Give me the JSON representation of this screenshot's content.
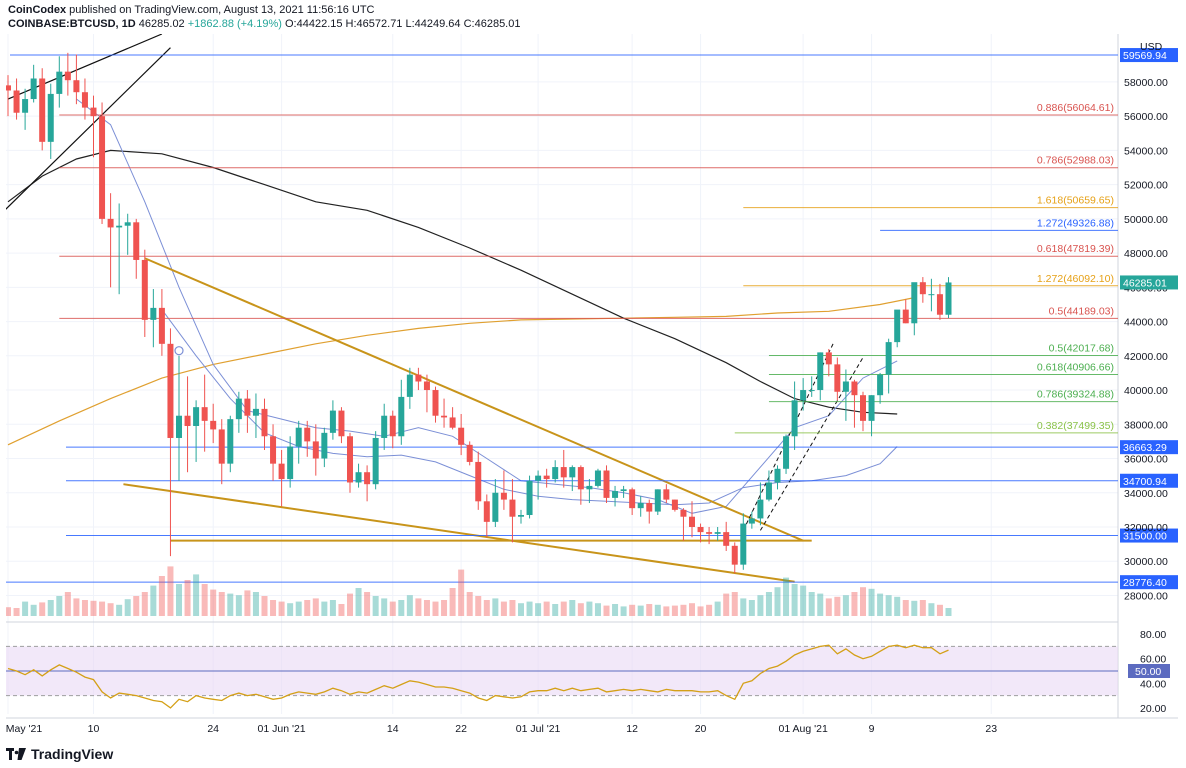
{
  "header": {
    "publisher": "CoinCodex",
    "published_text": "published on TradingView.com, August 13, 2021 11:56:16 UTC",
    "symbol": "COINBASE:BTCUSD, 1D",
    "last": "46285.02",
    "change": "+1862.88 (+4.19%)",
    "ohlc": "O:44422.15 H:46572.71 L:44249.64 C:46285.01"
  },
  "footer": {
    "brand": "TradingView"
  },
  "colors": {
    "up": "#26a69a",
    "down": "#ef5350",
    "rsi_line": "#d4a017",
    "rsi_band": "#e9d8f5",
    "ma_black": "#222222",
    "ma_blue": "#7b8fd6",
    "ma_orange": "#e0a030",
    "trend": "#c8941a"
  },
  "chart_data": {
    "type": "candlestick",
    "title": "",
    "currency_label": "USD",
    "ylim": [
      26800,
      60800
    ],
    "price_ticks": [
      28000,
      30000,
      32000,
      34000,
      36000,
      38000,
      40000,
      42000,
      44000,
      46000,
      48000,
      50000,
      52000,
      54000,
      56000,
      58000
    ],
    "price_tick_labels": [
      "28000.00",
      "30000.00",
      "32000.00",
      "34000.00",
      "36000.00",
      "38000.00",
      "40000.00",
      "42000.00",
      "44000.00",
      "46000.00",
      "48000.00",
      "50000.00",
      "52000.00",
      "54000.00",
      "56000.00",
      "58000.00"
    ],
    "x_tick_labels": [
      {
        "label": "May '21",
        "day": 0
      },
      {
        "label": "10",
        "day": 10
      },
      {
        "label": "24",
        "day": 24
      },
      {
        "label": "01 Jun '21",
        "day": 32
      },
      {
        "label": "14",
        "day": 45
      },
      {
        "label": "22",
        "day": 53
      },
      {
        "label": "01 Jul '21",
        "day": 62
      },
      {
        "label": "12",
        "day": 73
      },
      {
        "label": "20",
        "day": 81
      },
      {
        "label": "01 Aug '21",
        "day": 93
      },
      {
        "label": "9",
        "day": 101
      },
      {
        "label": "23",
        "day": 115
      }
    ],
    "ohlc": [
      [
        57800,
        58400,
        56000,
        57500
      ],
      [
        57500,
        58200,
        55800,
        56200
      ],
      [
        56200,
        57600,
        55200,
        57000
      ],
      [
        57000,
        59000,
        56800,
        58200
      ],
      [
        58200,
        58800,
        54000,
        54500
      ],
      [
        54500,
        57900,
        53500,
        57300
      ],
      [
        57300,
        59500,
        56500,
        58600
      ],
      [
        58600,
        59700,
        57200,
        58100
      ],
      [
        58100,
        59600,
        56700,
        57400
      ],
      [
        57400,
        58200,
        55800,
        56500
      ],
      [
        56500,
        57200,
        53600,
        56000
      ],
      [
        56000,
        56800,
        49700,
        50000
      ],
      [
        50000,
        51500,
        46000,
        49500
      ],
      [
        49500,
        50900,
        45600,
        49600
      ],
      [
        49600,
        50300,
        47900,
        49800
      ],
      [
        49800,
        50000,
        46500,
        47600
      ],
      [
        47600,
        48200,
        43100,
        44100
      ],
      [
        44100,
        45900,
        42500,
        44800
      ],
      [
        44800,
        45900,
        42000,
        42700
      ],
      [
        42700,
        43600,
        30300,
        37200
      ],
      [
        37200,
        42000,
        34700,
        38500
      ],
      [
        38500,
        40800,
        35200,
        37900
      ],
      [
        37900,
        39400,
        35800,
        39000
      ],
      [
        39000,
        40900,
        36400,
        38200
      ],
      [
        38200,
        39200,
        36900,
        37700
      ],
      [
        37700,
        38300,
        34500,
        35700
      ],
      [
        35700,
        38500,
        35200,
        38300
      ],
      [
        38300,
        39900,
        37500,
        39500
      ],
      [
        39500,
        40000,
        37500,
        38500
      ],
      [
        38500,
        39800,
        37200,
        38900
      ],
      [
        38900,
        39500,
        36500,
        37300
      ],
      [
        37300,
        38000,
        34700,
        35700
      ],
      [
        35700,
        36500,
        33200,
        34800
      ],
      [
        34800,
        37300,
        34300,
        36700
      ],
      [
        36700,
        38200,
        35700,
        37800
      ],
      [
        37800,
        38200,
        36100,
        37000
      ],
      [
        37000,
        38000,
        35000,
        36000
      ],
      [
        36000,
        37800,
        35500,
        37500
      ],
      [
        37500,
        39400,
        37100,
        38800
      ],
      [
        38800,
        39000,
        36900,
        37300
      ],
      [
        37300,
        37500,
        34000,
        34600
      ],
      [
        34600,
        35700,
        34300,
        35200
      ],
      [
        35200,
        35600,
        33500,
        34500
      ],
      [
        34500,
        37600,
        34200,
        37200
      ],
      [
        37200,
        39200,
        36500,
        38500
      ],
      [
        38500,
        38800,
        36600,
        37300
      ],
      [
        37300,
        40600,
        36800,
        39600
      ],
      [
        39600,
        41300,
        38900,
        40900
      ],
      [
        40900,
        41300,
        40000,
        40500
      ],
      [
        40500,
        40900,
        38700,
        40000
      ],
      [
        40000,
        40200,
        38100,
        38500
      ],
      [
        38500,
        39500,
        37800,
        38400
      ],
      [
        38400,
        39000,
        37700,
        37800
      ],
      [
        37800,
        38600,
        36200,
        36800
      ],
      [
        36800,
        37000,
        35600,
        35800
      ],
      [
        35800,
        36400,
        33000,
        33500
      ],
      [
        33500,
        33900,
        31400,
        32300
      ],
      [
        32300,
        34800,
        32000,
        34000
      ],
      [
        34000,
        35300,
        33000,
        33600
      ],
      [
        33600,
        34800,
        31100,
        32600
      ],
      [
        32600,
        33000,
        32200,
        32700
      ],
      [
        32700,
        35000,
        32500,
        34700
      ],
      [
        34700,
        35300,
        33600,
        35000
      ],
      [
        35000,
        35400,
        34300,
        34800
      ],
      [
        34800,
        35900,
        34600,
        35500
      ],
      [
        35500,
        36500,
        34300,
        34900
      ],
      [
        34900,
        35600,
        34100,
        35500
      ],
      [
        35500,
        35600,
        33300,
        34200
      ],
      [
        34200,
        34800,
        33400,
        34400
      ],
      [
        34400,
        35400,
        34300,
        35300
      ],
      [
        35300,
        35600,
        33400,
        33700
      ],
      [
        33700,
        34400,
        33200,
        34100
      ],
      [
        34100,
        34400,
        33700,
        34200
      ],
      [
        34200,
        34300,
        32700,
        33100
      ],
      [
        33100,
        33800,
        32600,
        33400
      ],
      [
        33400,
        33600,
        32200,
        32900
      ],
      [
        32900,
        34200,
        32700,
        34200
      ],
      [
        34200,
        34500,
        33400,
        33600
      ],
      [
        33600,
        33600,
        32900,
        33000
      ],
      [
        33000,
        33100,
        31200,
        32600
      ],
      [
        32600,
        33500,
        31400,
        32000
      ],
      [
        32000,
        32200,
        31100,
        31700
      ],
      [
        31700,
        32000,
        31000,
        31600
      ],
      [
        31600,
        32000,
        31200,
        31700
      ],
      [
        31700,
        32300,
        30600,
        30900
      ],
      [
        30900,
        31100,
        29300,
        29800
      ],
      [
        29800,
        32800,
        29500,
        32200
      ],
      [
        32200,
        32900,
        31900,
        32500
      ],
      [
        32500,
        34600,
        32100,
        33600
      ],
      [
        33600,
        35300,
        33500,
        34600
      ],
      [
        34600,
        35600,
        34200,
        35400
      ],
      [
        35400,
        37400,
        35100,
        37300
      ],
      [
        37300,
        40500,
        36500,
        39400
      ],
      [
        39400,
        40700,
        38800,
        40000
      ],
      [
        40000,
        40800,
        39600,
        40000
      ],
      [
        40000,
        42200,
        39400,
        42200
      ],
      [
        42200,
        42400,
        40800,
        41500
      ],
      [
        41500,
        41900,
        39400,
        39900
      ],
      [
        39900,
        41200,
        38200,
        40500
      ],
      [
        40500,
        40600,
        37800,
        39700
      ],
      [
        39700,
        39900,
        37600,
        38200
      ],
      [
        38200,
        39700,
        37300,
        39700
      ],
      [
        39700,
        41000,
        39200,
        40900
      ],
      [
        40900,
        43000,
        39800,
        42800
      ],
      [
        42800,
        44600,
        42500,
        44700
      ],
      [
        44700,
        45300,
        43900,
        43900
      ],
      [
        43900,
        46100,
        43200,
        46300
      ],
      [
        46300,
        46600,
        45100,
        45600
      ],
      [
        45600,
        46500,
        44600,
        45600
      ],
      [
        45600,
        46200,
        44100,
        44400
      ],
      [
        44400,
        46600,
        44200,
        46285
      ]
    ],
    "volume_heights": [
      11,
      10,
      18,
      14,
      17,
      20,
      25,
      30,
      22,
      20,
      19,
      18,
      16,
      14,
      21,
      25,
      30,
      38,
      50,
      62,
      40,
      45,
      52,
      40,
      33,
      30,
      28,
      26,
      32,
      30,
      25,
      20,
      18,
      16,
      18,
      20,
      22,
      18,
      20,
      15,
      28,
      35,
      30,
      25,
      22,
      18,
      20,
      26,
      22,
      20,
      18,
      20,
      35,
      58,
      30,
      25,
      20,
      22,
      18,
      20,
      16,
      18,
      16,
      18,
      15,
      18,
      20,
      16,
      18,
      16,
      13,
      15,
      12,
      14,
      13,
      15,
      14,
      12,
      13,
      14,
      16,
      12,
      14,
      18,
      28,
      30,
      22,
      20,
      26,
      30,
      36,
      48,
      40,
      38,
      30,
      28,
      22,
      24,
      26,
      30,
      36,
      34,
      28,
      26,
      24,
      20,
      19,
      20,
      16,
      14,
      10
    ],
    "rsi_ticks": [
      20,
      40,
      50,
      60,
      80
    ],
    "rsi_tick_labels": [
      "20.00",
      "40.00",
      "",
      "60.00",
      "80.00"
    ],
    "rsi_bands": [
      30,
      70
    ],
    "rsi_mid_label": "50.00",
    "rsi": [
      52,
      50,
      47,
      51,
      46,
      51,
      55,
      52,
      49,
      45,
      43,
      33,
      28,
      32,
      31,
      30,
      28,
      26,
      25,
      20,
      27,
      25,
      30,
      28,
      27,
      26,
      30,
      32,
      30,
      31,
      29,
      27,
      28,
      31,
      33,
      32,
      31,
      33,
      36,
      34,
      31,
      33,
      32,
      35,
      38,
      36,
      39,
      42,
      41,
      39,
      37,
      37,
      36,
      34,
      32,
      28,
      26,
      30,
      29,
      28,
      29,
      33,
      34,
      34,
      36,
      34,
      36,
      34,
      35,
      36,
      33,
      34,
      35,
      34,
      35,
      34,
      33,
      35,
      34,
      34,
      34,
      33,
      33,
      34,
      30,
      27,
      40,
      42,
      48,
      52,
      54,
      58,
      63,
      66,
      68,
      70,
      71,
      64,
      68,
      63,
      60,
      62,
      66,
      70,
      71,
      69,
      71,
      69,
      69,
      64,
      67
    ],
    "levels": [
      {
        "label": "59569.94",
        "value": 59569.94,
        "color": "#2962ff",
        "type": "axis"
      },
      {
        "label": "0.886(56064.61)",
        "value": 56064.61,
        "color": "#d9534f",
        "type": "fib"
      },
      {
        "label": "0.786(52988.03)",
        "value": 52988.03,
        "color": "#d9534f",
        "type": "fib"
      },
      {
        "label": "1.618(50659.65)",
        "value": 50659.65,
        "color": "#e6a117",
        "type": "fib_short"
      },
      {
        "label": "1.272(49326.88)",
        "value": 49326.88,
        "color": "#2962ff",
        "type": "fib_shorter"
      },
      {
        "label": "0.618(47819.39)",
        "value": 47819.39,
        "color": "#d9534f",
        "type": "fib"
      },
      {
        "label": "1.272(46092.10)",
        "value": 46092.1,
        "color": "#e6a117",
        "type": "fib_short"
      },
      {
        "label": "0.5(44189.03)",
        "value": 44189.03,
        "color": "#d9534f",
        "type": "fib"
      },
      {
        "label": "0.5(42017.68)",
        "value": 42017.68,
        "color": "#4caf50",
        "type": "fib_green"
      },
      {
        "label": "0.618(40906.66)",
        "value": 40906.66,
        "color": "#4caf50",
        "type": "fib_green"
      },
      {
        "label": "0.786(39324.88)",
        "value": 39324.88,
        "color": "#4caf50",
        "type": "fib_green"
      },
      {
        "label": "0.382(37499.35)",
        "value": 37499.35,
        "color": "#8bc34a",
        "type": "fib_green_light"
      },
      {
        "label": "36663.29",
        "value": 36663.29,
        "color": "#2962ff",
        "type": "axis"
      },
      {
        "label": "34700.94",
        "value": 34700.94,
        "color": "#2962ff",
        "type": "axis"
      },
      {
        "label": "31500.00",
        "value": 31500.0,
        "color": "#2962ff",
        "type": "axis"
      },
      {
        "label": "28776.40",
        "value": 28776.4,
        "color": "#2962ff",
        "type": "axis"
      }
    ],
    "current_price_label": "46285.01",
    "ma50": [
      [
        18,
        44700
      ],
      [
        22,
        42000
      ],
      [
        26,
        39500
      ],
      [
        30,
        37500
      ],
      [
        34,
        36700
      ],
      [
        38,
        36300
      ],
      [
        42,
        36100
      ],
      [
        46,
        36200
      ],
      [
        50,
        35800
      ],
      [
        54,
        35000
      ],
      [
        58,
        34200
      ],
      [
        62,
        33800
      ],
      [
        66,
        33600
      ],
      [
        70,
        33500
      ],
      [
        74,
        33400
      ],
      [
        78,
        33300
      ],
      [
        82,
        33400
      ],
      [
        86,
        34300
      ],
      [
        90,
        34600
      ],
      [
        94,
        34700
      ],
      [
        98,
        35000
      ],
      [
        102,
        35700
      ],
      [
        104,
        36700
      ]
    ],
    "ma20": [
      [
        8,
        57000
      ],
      [
        12,
        55500
      ],
      [
        16,
        51000
      ],
      [
        20,
        46000
      ],
      [
        24,
        41500
      ],
      [
        28,
        38800
      ],
      [
        32,
        38300
      ],
      [
        36,
        37800
      ],
      [
        40,
        37600
      ],
      [
        44,
        37300
      ],
      [
        48,
        37800
      ],
      [
        52,
        37300
      ],
      [
        56,
        36000
      ],
      [
        60,
        34700
      ],
      [
        64,
        34500
      ],
      [
        68,
        34300
      ],
      [
        72,
        34000
      ],
      [
        76,
        33600
      ],
      [
        80,
        32800
      ],
      [
        84,
        33200
      ],
      [
        88,
        35500
      ],
      [
        92,
        37800
      ],
      [
        96,
        38500
      ],
      [
        100,
        40700
      ],
      [
        104,
        41700
      ]
    ],
    "ma100": [
      [
        0,
        51000
      ],
      [
        4,
        52500
      ],
      [
        8,
        53500
      ],
      [
        12,
        54000
      ],
      [
        18,
        53800
      ],
      [
        24,
        53000
      ],
      [
        30,
        52000
      ],
      [
        36,
        51000
      ],
      [
        42,
        50500
      ],
      [
        48,
        49500
      ],
      [
        54,
        48300
      ],
      [
        60,
        47000
      ],
      [
        66,
        45600
      ],
      [
        72,
        44200
      ],
      [
        78,
        43000
      ],
      [
        84,
        41600
      ],
      [
        88,
        40500
      ],
      [
        92,
        39500
      ],
      [
        96,
        39000
      ],
      [
        100,
        38700
      ],
      [
        104,
        38600
      ]
    ],
    "ma200": [
      [
        0,
        36800
      ],
      [
        6,
        38200
      ],
      [
        12,
        39500
      ],
      [
        18,
        40700
      ],
      [
        24,
        41500
      ],
      [
        30,
        42100
      ],
      [
        36,
        42700
      ],
      [
        42,
        43200
      ],
      [
        48,
        43600
      ],
      [
        54,
        43900
      ],
      [
        60,
        44100
      ],
      [
        66,
        44150
      ],
      [
        72,
        44200
      ],
      [
        78,
        44250
      ],
      [
        84,
        44300
      ],
      [
        90,
        44500
      ],
      [
        96,
        44600
      ],
      [
        102,
        45000
      ],
      [
        106,
        45400
      ]
    ]
  }
}
